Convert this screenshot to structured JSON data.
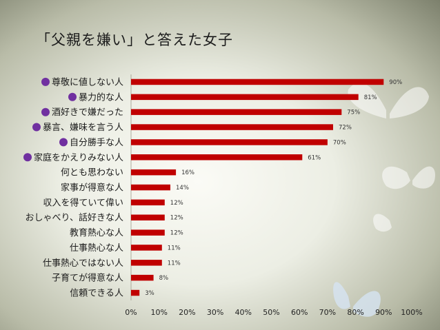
{
  "page_title": "「父親を嫌い」と答えた女子",
  "colors": {
    "bar": "#c00000",
    "bullet": "#7030a0",
    "text": "#1c1c1c"
  },
  "chart_data": {
    "type": "bar",
    "orientation": "horizontal",
    "title": "「父親を嫌い」と答えた女子",
    "categories": [
      "尊敬に値しない人",
      "暴力的な人",
      "酒好きで嫌だった",
      "暴言、嫌味を言う人",
      "自分勝手な人",
      "家庭をかえりみない人",
      "何とも思わない",
      "家事が得意な人",
      "収入を得ていて偉い",
      "おしゃべり、話好きな人",
      "教育熱心な人",
      "仕事熱心な人",
      "仕事熱心ではない人",
      "子育てが得意な人",
      "信頼できる人"
    ],
    "values": [
      90,
      81,
      75,
      72,
      70,
      61,
      16,
      14,
      12,
      12,
      12,
      11,
      11,
      8,
      3
    ],
    "data_labels": [
      "90%",
      "81%",
      "75%",
      "72%",
      "70%",
      "61%",
      "16%",
      "14%",
      "12%",
      "12%",
      "12%",
      "11%",
      "11%",
      "8%",
      "3%"
    ],
    "highlighted": [
      true,
      true,
      true,
      true,
      true,
      true,
      false,
      false,
      false,
      false,
      false,
      false,
      false,
      false,
      false
    ],
    "x_ticks": [
      "0%",
      "10%",
      "20%",
      "30%",
      "40%",
      "50%",
      "60%",
      "70%",
      "80%",
      "90%",
      "100%"
    ],
    "xlim": [
      0,
      100
    ],
    "grid": false,
    "legend": "none"
  }
}
